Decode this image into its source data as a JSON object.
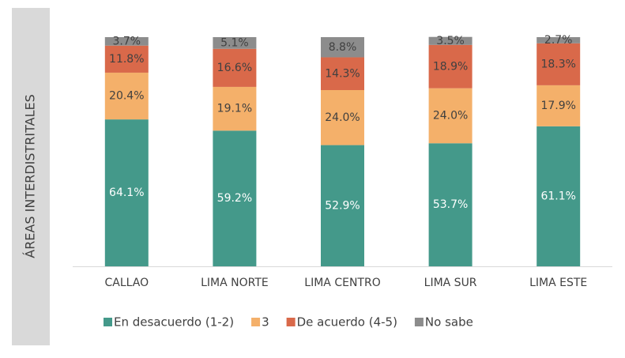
{
  "chart_data": {
    "type": "stacked_bar",
    "ylabel": "ÁREAS INTERDISTRITALES",
    "categories": [
      "CALLAO",
      "LIMA NORTE",
      "LIMA CENTRO",
      "LIMA SUR",
      "LIMA ESTE"
    ],
    "ylim": [
      0,
      100
    ],
    "series": [
      {
        "name": "En desacuerdo (1-2)",
        "color": "#44998a",
        "values": [
          64.1,
          59.2,
          52.9,
          53.7,
          61.1
        ],
        "value_labels": [
          "64.1%",
          "59.2%",
          "52.9%",
          "53.7%",
          "61.1%"
        ]
      },
      {
        "name": "3",
        "color": "#f4b06a",
        "values": [
          20.4,
          19.1,
          24.0,
          24.0,
          17.9
        ],
        "value_labels": [
          "20.4%",
          "19.1%",
          "24.0%",
          "24.0%",
          "17.9%"
        ]
      },
      {
        "name": "De acuerdo (4-5)",
        "color": "#d9694a",
        "values": [
          11.8,
          16.6,
          14.3,
          18.9,
          18.3
        ],
        "value_labels": [
          "11.8%",
          "16.6%",
          "14.3%",
          "18.9%",
          "18.3%"
        ]
      },
      {
        "name": "No sabe",
        "color": "#8c8c8c",
        "values": [
          3.7,
          5.1,
          8.8,
          3.5,
          2.7
        ],
        "value_labels": [
          "3.7%",
          "5.1%",
          "8.8%",
          "3.5%",
          "2.7%"
        ]
      }
    ]
  }
}
